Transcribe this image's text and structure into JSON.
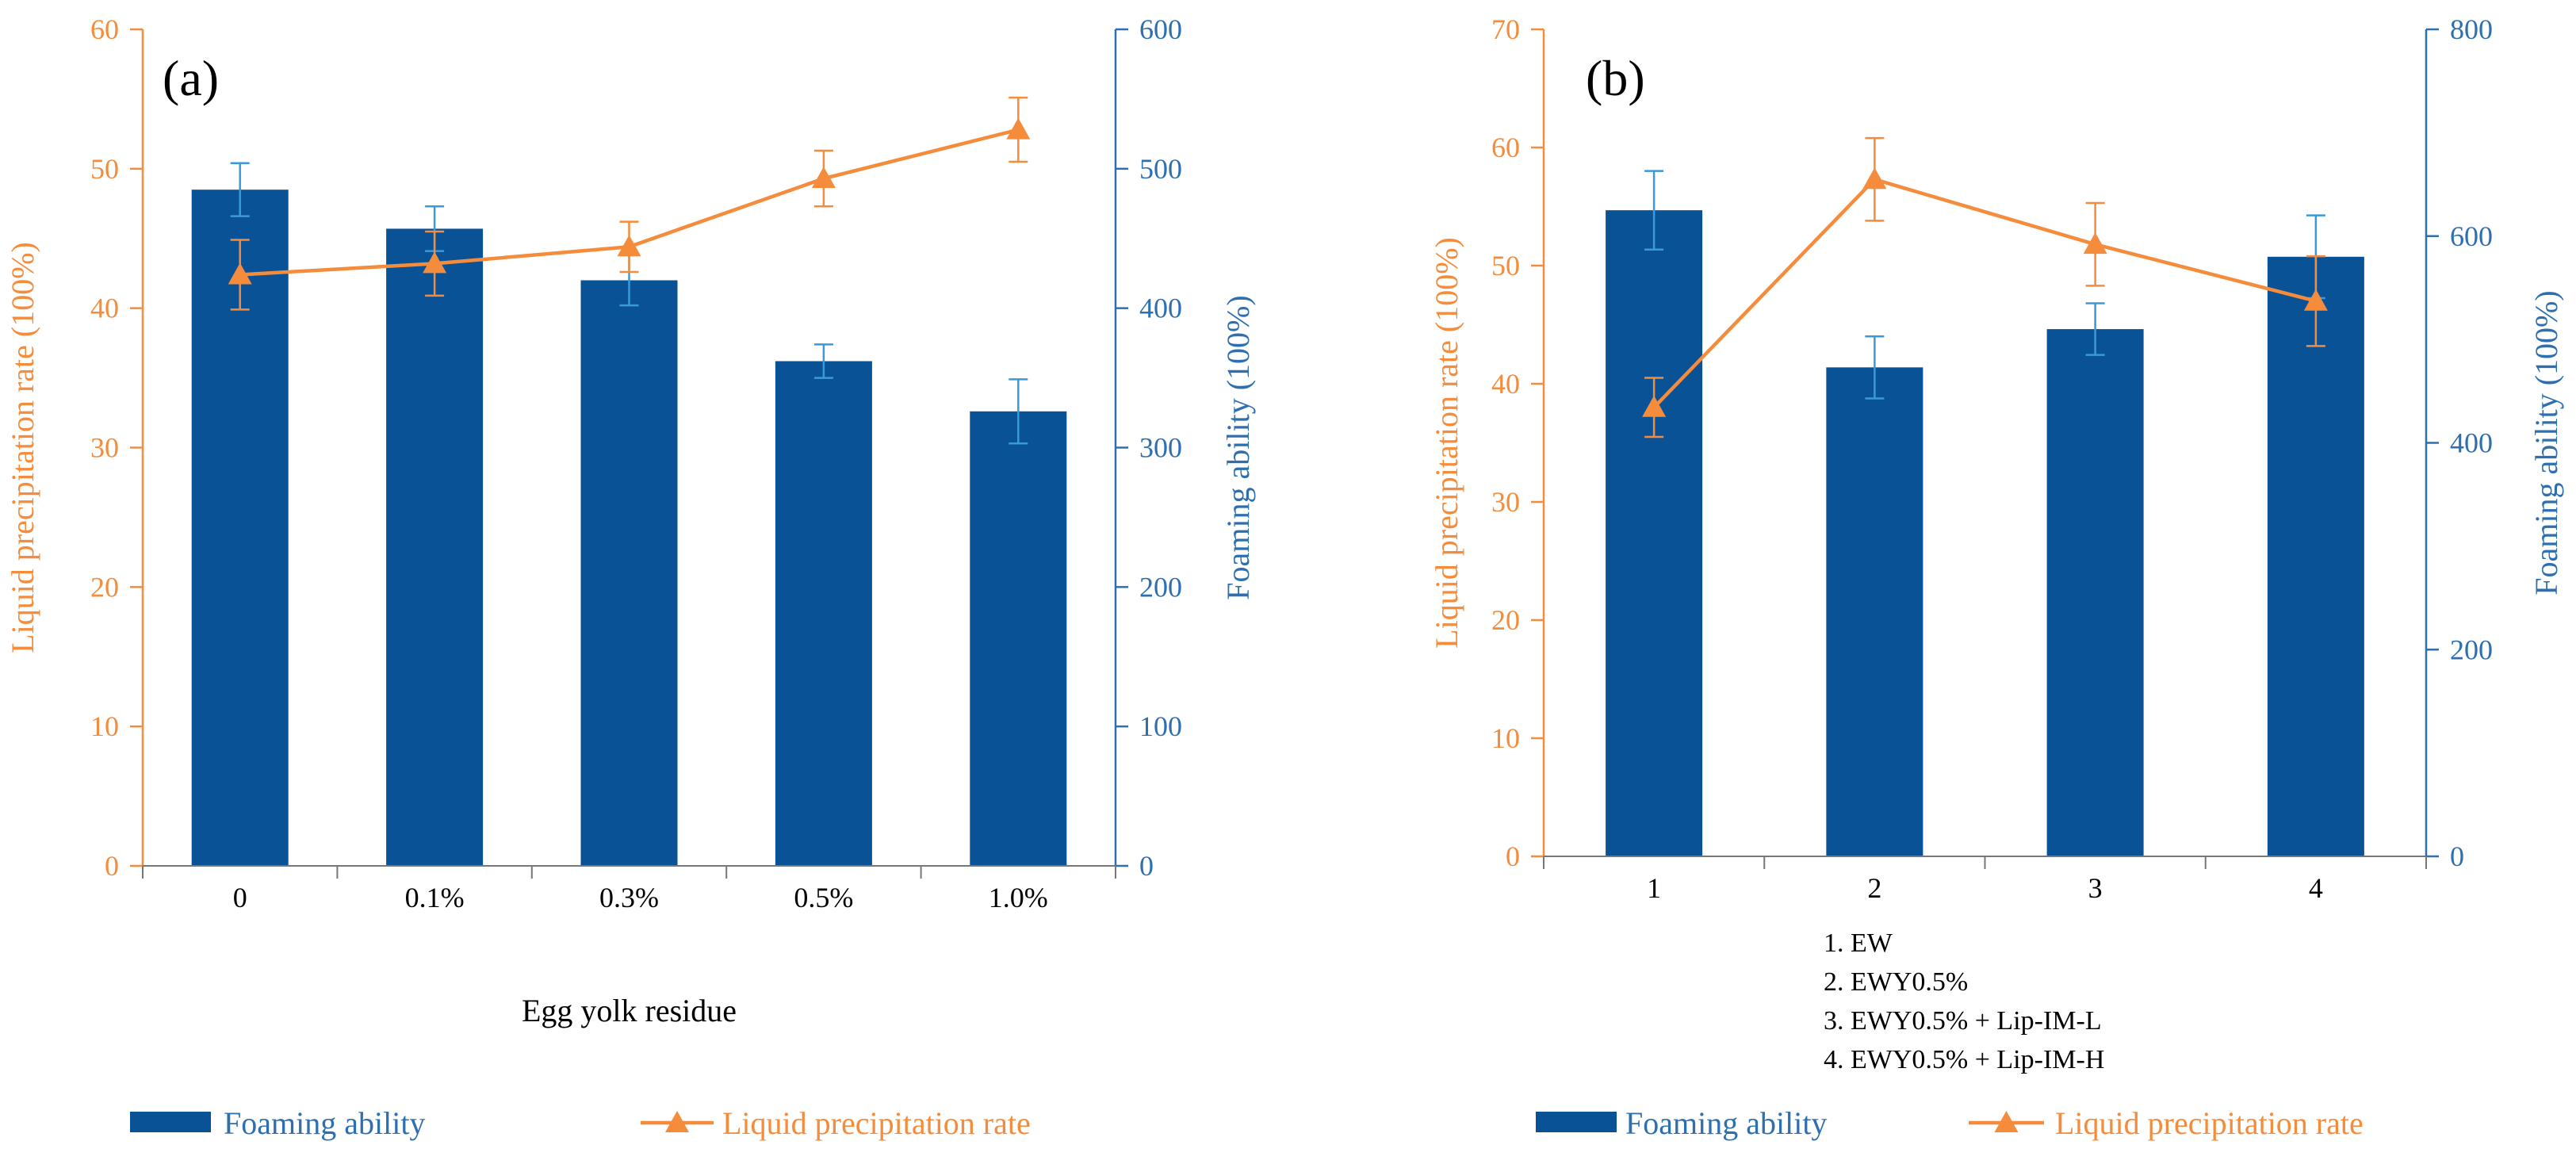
{
  "colors": {
    "bar": "#0a5296",
    "line": "#f58c3c",
    "axis_left": "#f58c3c",
    "axis_right": "#2e6fb0",
    "bar_error": "#3a9ad9",
    "text": "#000000"
  },
  "chart_data": [
    {
      "type": "bar+line",
      "panel_label": "(a)",
      "categories": [
        "0",
        "0.1%",
        "0.3%",
        "0.5%",
        "1.0%"
      ],
      "xlabel": "Egg yolk residue",
      "ylabel_left": "Liquid precipitation rate (100%)",
      "ylabel_right": "Foaming ability (100%)",
      "ylim_left": [
        0,
        60
      ],
      "ylim_right": [
        0,
        600
      ],
      "yticks_left": [
        "0",
        "10",
        "20",
        "30",
        "40",
        "50",
        "60"
      ],
      "yticks_right": [
        "0",
        "100",
        "200",
        "300",
        "400",
        "500",
        "600"
      ],
      "bars": {
        "name": "Foaming ability",
        "values": [
          485,
          457,
          420,
          362,
          326
        ],
        "errors": [
          19,
          16,
          18,
          12,
          23
        ]
      },
      "line": {
        "name": "Liquid precipitation rate",
        "values": [
          42.4,
          43.2,
          44.4,
          49.3,
          52.8
        ],
        "errors": [
          2.5,
          2.3,
          1.8,
          2.0,
          2.3
        ]
      },
      "legend": {
        "bar_label": "Foaming ability",
        "line_label": "Liquid precipitation rate"
      },
      "notes": []
    },
    {
      "type": "bar+line",
      "panel_label": "(b)",
      "categories": [
        "1",
        "2",
        "3",
        "4"
      ],
      "xlabel": "",
      "ylabel_left": "Liquid precipitation rate (100%)",
      "ylabel_right": "Foaming ability (100%)",
      "ylim_left": [
        0,
        70
      ],
      "ylim_right": [
        0,
        800
      ],
      "yticks_left": [
        "0",
        "10",
        "20",
        "30",
        "40",
        "50",
        "60",
        "70"
      ],
      "yticks_right": [
        "0",
        "200",
        "400",
        "600",
        "800"
      ],
      "bars": {
        "name": "Foaming ability",
        "values": [
          625,
          473,
          510,
          580
        ],
        "errors": [
          38,
          30,
          25,
          40
        ]
      },
      "line": {
        "name": "Liquid precipitation rate",
        "values": [
          38.0,
          57.3,
          51.8,
          47.0
        ],
        "errors": [
          2.5,
          3.5,
          3.5,
          3.8
        ]
      },
      "legend": {
        "bar_label": "Foaming ability",
        "line_label": "Liquid precipitation rate"
      },
      "notes": [
        "1. EW",
        "2. EWY0.5%",
        "3. EWY0.5% + Lip-IM-L",
        "4. EWY0.5% + Lip-IM-H"
      ]
    }
  ]
}
